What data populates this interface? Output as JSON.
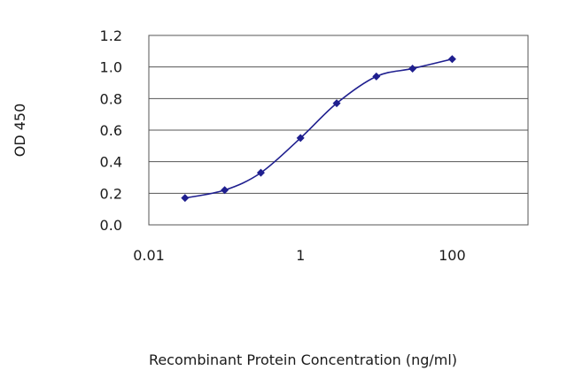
{
  "chart_data": {
    "type": "line",
    "title": "",
    "xlabel": "Recombinant Protein Concentration (ng/ml)",
    "ylabel": "OD 450",
    "x_scale": "log",
    "xlim": [
      0.01,
      1000
    ],
    "ylim": [
      0,
      1.2
    ],
    "x_tick_labels": [
      "0.01",
      "1",
      "100"
    ],
    "x_tick_values": [
      0.01,
      1,
      100
    ],
    "y_tick_values": [
      0,
      0.2,
      0.4,
      0.6,
      0.8,
      1.0,
      1.2
    ],
    "y_tick_labels": [
      "0.0",
      "0.2",
      "0.4",
      "0.6",
      "0.8",
      "1.0",
      "1.2"
    ],
    "grid": "horizontal",
    "legend": "none",
    "series": [
      {
        "color": "#1f1f8f",
        "marker": "diamond",
        "x": [
          0.03,
          0.1,
          0.3,
          1,
          3,
          10,
          30,
          100
        ],
        "y": [
          0.17,
          0.22,
          0.33,
          0.55,
          0.77,
          0.94,
          0.99,
          1.05
        ]
      }
    ]
  }
}
